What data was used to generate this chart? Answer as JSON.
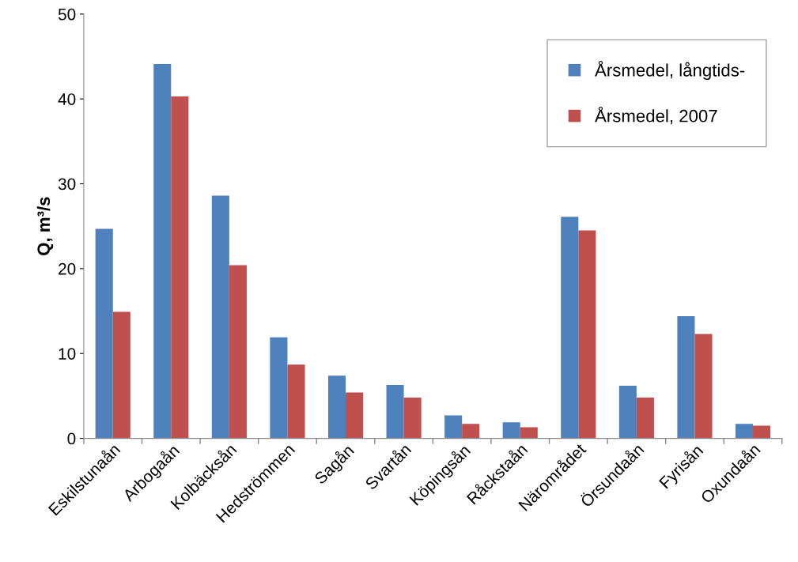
{
  "chart_data": {
    "type": "bar",
    "ylabel": "Q, m³/s",
    "categories": [
      "Eskilstunaån",
      "Arbogaån",
      "Kolbäcksån",
      "Hedströmmen",
      "Sagån",
      "Svartån",
      "Köpingsån",
      "Råckstaån",
      "Närområdet",
      "Örsundaån",
      "Fyrisån",
      "Oxundaån"
    ],
    "series": [
      {
        "name": "Årsmedel, långtids-",
        "color": "#4f81bd",
        "values": [
          24.7,
          44.1,
          28.6,
          11.9,
          7.4,
          6.3,
          2.7,
          1.9,
          26.1,
          6.2,
          14.4,
          1.7
        ]
      },
      {
        "name": "Årsmedel, 2007",
        "color": "#c0504d",
        "values": [
          14.9,
          40.3,
          20.4,
          8.7,
          5.4,
          4.8,
          1.7,
          1.3,
          24.5,
          4.8,
          12.3,
          1.5
        ]
      }
    ],
    "ylim": [
      0,
      50
    ],
    "yticks": [
      0,
      10,
      20,
      30,
      40,
      50
    ],
    "grid": false,
    "legend": "top right"
  }
}
